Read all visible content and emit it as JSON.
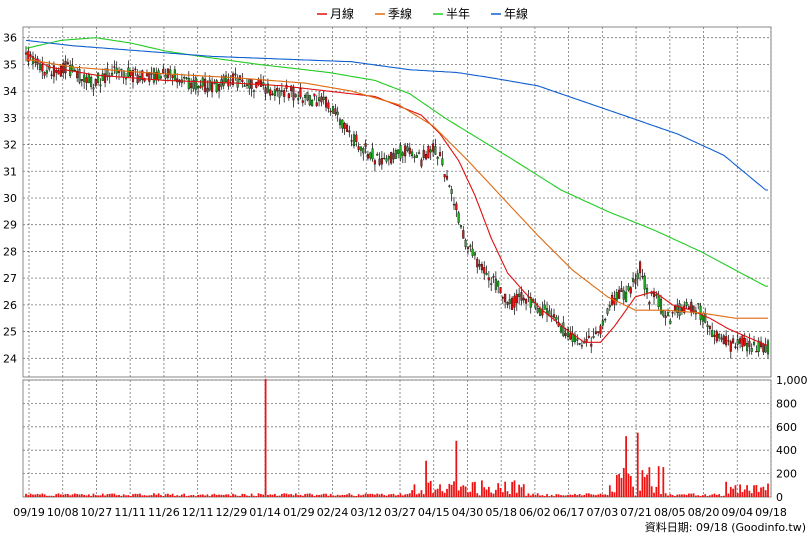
{
  "legend": [
    {
      "label": "月線",
      "color": "#e01010"
    },
    {
      "label": "季線",
      "color": "#e06a10"
    },
    {
      "label": "半年",
      "color": "#22cc22"
    },
    {
      "label": "年線",
      "color": "#1060d0"
    }
  ],
  "footer": "資料日期: 09/18 (Goodinfo.tw)",
  "colors": {
    "up": "#dd1111",
    "down": "#22aa22",
    "volume": "#ee1111",
    "grid": "#777777"
  },
  "chart_data": [
    {
      "type": "candlestick",
      "yticks": [
        24,
        25,
        26,
        27,
        28,
        29,
        30,
        31,
        32,
        33,
        34,
        35,
        36
      ],
      "ylim": [
        23.3,
        36.4
      ],
      "xticks": [
        "09/19",
        "10/08",
        "10/27",
        "11/11",
        "11/26",
        "12/11",
        "12/29",
        "01/14",
        "01/29",
        "02/24",
        "03/12",
        "03/27",
        "04/15",
        "04/30",
        "05/18",
        "06/02",
        "06/17",
        "07/03",
        "07/21",
        "08/05",
        "08/20",
        "09/04",
        "09/18"
      ],
      "grid": true,
      "series": [
        {
          "name": "月線",
          "points": [
            [
              0,
              35.4
            ],
            [
              10,
              34.9
            ],
            [
              30,
              34.6
            ],
            [
              60,
              34.4
            ],
            [
              90,
              34.3
            ],
            [
              110,
              34.2
            ],
            [
              130,
              34.0
            ],
            [
              150,
              33.8
            ],
            [
              170,
              33.1
            ],
            [
              178,
              32.4
            ],
            [
              186,
              31.4
            ],
            [
              193,
              30.1
            ],
            [
              200,
              28.5
            ],
            [
              207,
              27.2
            ],
            [
              214,
              26.5
            ],
            [
              222,
              25.8
            ],
            [
              232,
              25.1
            ],
            [
              240,
              24.6
            ],
            [
              247,
              24.6
            ],
            [
              253,
              25.2
            ],
            [
              262,
              26.3
            ],
            [
              270,
              26.5
            ],
            [
              278,
              26.0
            ],
            [
              286,
              25.8
            ],
            [
              294,
              25.5
            ],
            [
              302,
              25.1
            ],
            [
              310,
              24.8
            ],
            [
              318,
              24.5
            ]
          ]
        },
        {
          "name": "季線",
          "points": [
            [
              0,
              35.2
            ],
            [
              20,
              34.9
            ],
            [
              50,
              34.7
            ],
            [
              90,
              34.5
            ],
            [
              120,
              34.3
            ],
            [
              140,
              34.0
            ],
            [
              160,
              33.5
            ],
            [
              175,
              32.7
            ],
            [
              190,
              31.4
            ],
            [
              205,
              30.0
            ],
            [
              220,
              28.6
            ],
            [
              235,
              27.3
            ],
            [
              250,
              26.3
            ],
            [
              262,
              25.8
            ],
            [
              275,
              25.8
            ],
            [
              290,
              25.7
            ],
            [
              305,
              25.5
            ],
            [
              318,
              25.5
            ]
          ]
        },
        {
          "name": "半年",
          "points": [
            [
              0,
              35.6
            ],
            [
              15,
              35.9
            ],
            [
              30,
              36.0
            ],
            [
              45,
              35.8
            ],
            [
              60,
              35.5
            ],
            [
              75,
              35.3
            ],
            [
              100,
              35.0
            ],
            [
              130,
              34.7
            ],
            [
              150,
              34.4
            ],
            [
              165,
              33.9
            ],
            [
              180,
              33.0
            ],
            [
              195,
              32.2
            ],
            [
              210,
              31.4
            ],
            [
              230,
              30.3
            ],
            [
              250,
              29.5
            ],
            [
              270,
              28.8
            ],
            [
              290,
              28.0
            ],
            [
              305,
              27.3
            ],
            [
              318,
              26.7
            ]
          ]
        },
        {
          "name": "年線",
          "points": [
            [
              0,
              35.9
            ],
            [
              20,
              35.7
            ],
            [
              50,
              35.5
            ],
            [
              80,
              35.3
            ],
            [
              110,
              35.2
            ],
            [
              140,
              35.1
            ],
            [
              165,
              34.8
            ],
            [
              185,
              34.7
            ],
            [
              200,
              34.5
            ],
            [
              220,
              34.2
            ],
            [
              240,
              33.6
            ],
            [
              260,
              33.0
            ],
            [
              280,
              32.4
            ],
            [
              300,
              31.6
            ],
            [
              318,
              30.3
            ]
          ]
        }
      ],
      "candles": {
        "anchors": [
          [
            0,
            35.3
          ],
          [
            10,
            34.7
          ],
          [
            18,
            34.9
          ],
          [
            28,
            34.3
          ],
          [
            40,
            34.8
          ],
          [
            50,
            34.5
          ],
          [
            60,
            34.7
          ],
          [
            70,
            34.3
          ],
          [
            80,
            34.2
          ],
          [
            90,
            34.4
          ],
          [
            100,
            34.2
          ],
          [
            110,
            34.0
          ],
          [
            120,
            33.8
          ],
          [
            130,
            33.5
          ],
          [
            136,
            32.7
          ],
          [
            142,
            32.1
          ],
          [
            150,
            31.5
          ],
          [
            158,
            31.5
          ],
          [
            164,
            31.9
          ],
          [
            170,
            31.4
          ],
          [
            175,
            32.0
          ],
          [
            178,
            31.5
          ],
          [
            182,
            30.6
          ],
          [
            186,
            29.2
          ],
          [
            190,
            28.1
          ],
          [
            196,
            27.3
          ],
          [
            202,
            26.8
          ],
          [
            208,
            26.0
          ],
          [
            214,
            26.4
          ],
          [
            220,
            25.9
          ],
          [
            226,
            25.6
          ],
          [
            232,
            25.0
          ],
          [
            238,
            24.7
          ],
          [
            242,
            24.6
          ],
          [
            246,
            24.8
          ],
          [
            250,
            25.8
          ],
          [
            254,
            26.4
          ],
          [
            258,
            26.3
          ],
          [
            262,
            26.9
          ],
          [
            264,
            27.4
          ],
          [
            268,
            26.3
          ],
          [
            272,
            26.1
          ],
          [
            276,
            25.5
          ],
          [
            280,
            25.8
          ],
          [
            284,
            26.0
          ],
          [
            288,
            25.9
          ],
          [
            292,
            25.5
          ],
          [
            296,
            24.9
          ],
          [
            300,
            24.6
          ],
          [
            304,
            24.5
          ],
          [
            308,
            24.6
          ],
          [
            312,
            24.4
          ],
          [
            318,
            24.4
          ]
        ]
      }
    },
    {
      "type": "bar",
      "yticks": [
        0,
        200,
        400,
        600,
        800,
        1000
      ],
      "ytick_labels": [
        "0",
        "200",
        "400",
        "600",
        "800",
        "1,000"
      ],
      "ylim": [
        0,
        1000
      ],
      "peak_value": 1010,
      "baseline_level": 25
    }
  ]
}
